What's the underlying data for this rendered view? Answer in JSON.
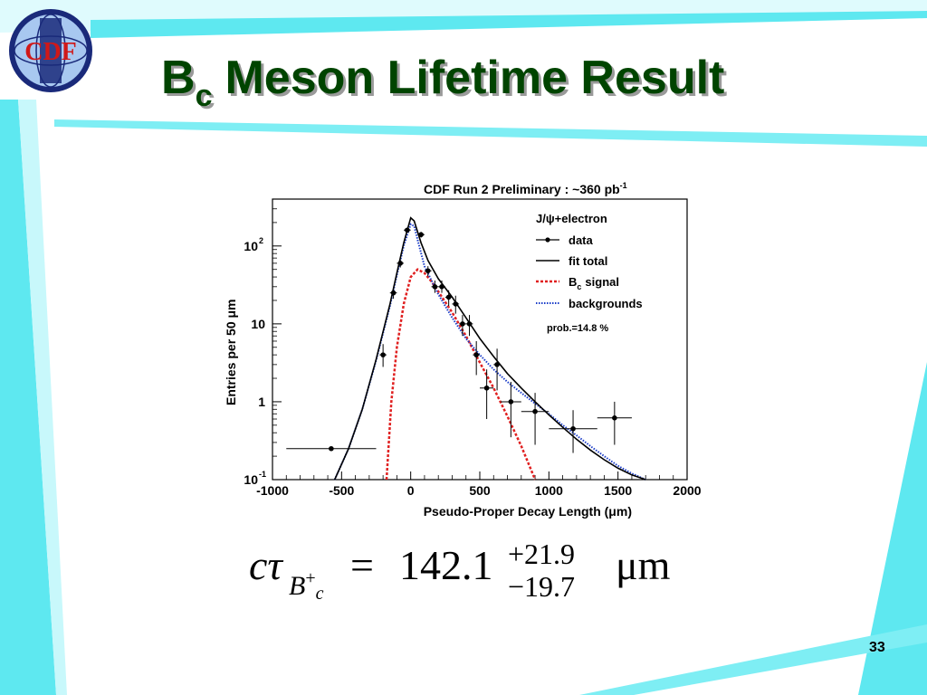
{
  "slide": {
    "title_main": "B",
    "title_sub": "c",
    "title_rest": "Meson Lifetime Result",
    "page_number": "33",
    "logo_text": "CDF"
  },
  "formula": {
    "lhs": "cτ",
    "lhs_sub": "B",
    "lhs_sub_sup": "+",
    "lhs_sub_sub": "c",
    "equals": "=",
    "value": "142.1",
    "err_plus": "+21.9",
    "err_minus": "−19.7",
    "unit": "μm"
  },
  "colors": {
    "title": "#004400",
    "accent_band": "#5ee8f0",
    "signal": "#e02020",
    "background_curve": "#1a3cc8",
    "fit_total": "#000000"
  },
  "chart_data": {
    "type": "scatter",
    "title": "CDF Run 2 Preliminary : ~360 pb",
    "title_sup": "-1",
    "xlabel": "Pseudo-Proper Decay Length (μm)",
    "ylabel": "Entries per 50 μm",
    "xlim": [
      -1000,
      2000
    ],
    "ylim": [
      0.1,
      400
    ],
    "y_scale": "log",
    "x_ticks": [
      "-1000",
      "-500",
      "0",
      "500",
      "1000",
      "1500",
      "2000"
    ],
    "x_tick_values": [
      -1000,
      -500,
      0,
      500,
      1000,
      1500,
      2000
    ],
    "y_ticks": [
      {
        "value": 0.1,
        "base": "10",
        "sup": "-1"
      },
      {
        "value": 1,
        "base": "1",
        "sup": ""
      },
      {
        "value": 10,
        "base": "10",
        "sup": ""
      },
      {
        "value": 100,
        "base": "10",
        "sup": "2"
      }
    ],
    "legend": {
      "header": "J/ψ+electron",
      "entries": [
        "data",
        "fit total",
        "B",
        "backgrounds"
      ],
      "signal_sub": "c",
      "signal_rest": "signal",
      "placement": "top-right"
    },
    "annotation": "prob.=14.8 %",
    "data_points": [
      {
        "x": -575,
        "y": 0.25,
        "xerr": 325,
        "ylo": 0.25,
        "yhi": 0.25
      },
      {
        "x": -200,
        "y": 4,
        "xerr": 25,
        "ylo": 2.8,
        "yhi": 5.5
      },
      {
        "x": -125,
        "y": 25,
        "xerr": 25,
        "ylo": 21,
        "yhi": 29
      },
      {
        "x": -75,
        "y": 60,
        "xerr": 25,
        "ylo": 53,
        "yhi": 67
      },
      {
        "x": -25,
        "y": 160,
        "xerr": 25,
        "ylo": 148,
        "yhi": 172
      },
      {
        "x": 75,
        "y": 140,
        "xerr": 25,
        "ylo": 128,
        "yhi": 152
      },
      {
        "x": 125,
        "y": 48,
        "xerr": 25,
        "ylo": 41,
        "yhi": 55
      },
      {
        "x": 175,
        "y": 30,
        "xerr": 25,
        "ylo": 25,
        "yhi": 36
      },
      {
        "x": 225,
        "y": 30,
        "xerr": 25,
        "ylo": 25,
        "yhi": 36
      },
      {
        "x": 275,
        "y": 22,
        "xerr": 25,
        "ylo": 17,
        "yhi": 27
      },
      {
        "x": 325,
        "y": 18,
        "xerr": 25,
        "ylo": 13.5,
        "yhi": 23
      },
      {
        "x": 375,
        "y": 10,
        "xerr": 25,
        "ylo": 7,
        "yhi": 13
      },
      {
        "x": 425,
        "y": 10,
        "xerr": 25,
        "ylo": 7,
        "yhi": 13
      },
      {
        "x": 475,
        "y": 4,
        "xerr": 25,
        "ylo": 2.2,
        "yhi": 6
      },
      {
        "x": 550,
        "y": 1.5,
        "xerr": 50,
        "ylo": 0.6,
        "yhi": 2.6
      },
      {
        "x": 625,
        "y": 3,
        "xerr": 25,
        "ylo": 1.4,
        "yhi": 4.8
      },
      {
        "x": 725,
        "y": 1,
        "xerr": 75,
        "ylo": 0.35,
        "yhi": 1.8
      },
      {
        "x": 900,
        "y": 0.75,
        "xerr": 100,
        "ylo": 0.28,
        "yhi": 1.3
      },
      {
        "x": 1175,
        "y": 0.45,
        "xerr": 175,
        "ylo": 0.22,
        "yhi": 0.78
      },
      {
        "x": 1475,
        "y": 0.62,
        "xerr": 125,
        "ylo": 0.28,
        "yhi": 1.0
      }
    ],
    "fit_total": [
      [
        -550,
        0.1
      ],
      [
        -450,
        0.25
      ],
      [
        -350,
        0.8
      ],
      [
        -250,
        3.5
      ],
      [
        -150,
        18
      ],
      [
        -100,
        45
      ],
      [
        -50,
        110
      ],
      [
        0,
        230
      ],
      [
        25,
        210
      ],
      [
        75,
        110
      ],
      [
        125,
        65
      ],
      [
        200,
        38
      ],
      [
        300,
        22
      ],
      [
        400,
        12
      ],
      [
        500,
        6.5
      ],
      [
        600,
        3.8
      ],
      [
        700,
        2.3
      ],
      [
        800,
        1.5
      ],
      [
        900,
        1.0
      ],
      [
        1000,
        0.68
      ],
      [
        1100,
        0.47
      ],
      [
        1200,
        0.33
      ],
      [
        1300,
        0.24
      ],
      [
        1400,
        0.18
      ],
      [
        1500,
        0.14
      ],
      [
        1600,
        0.115
      ],
      [
        1700,
        0.1
      ]
    ],
    "backgrounds": [
      [
        -550,
        0.1
      ],
      [
        -450,
        0.25
      ],
      [
        -350,
        0.8
      ],
      [
        -250,
        3.4
      ],
      [
        -150,
        17
      ],
      [
        -100,
        42
      ],
      [
        -50,
        100
      ],
      [
        0,
        190
      ],
      [
        25,
        180
      ],
      [
        50,
        120
      ],
      [
        100,
        55
      ],
      [
        200,
        24
      ],
      [
        300,
        12
      ],
      [
        400,
        6.5
      ],
      [
        500,
        4
      ],
      [
        600,
        2.6
      ],
      [
        700,
        1.8
      ],
      [
        800,
        1.3
      ],
      [
        900,
        0.95
      ],
      [
        1000,
        0.7
      ],
      [
        1100,
        0.5
      ],
      [
        1200,
        0.37
      ],
      [
        1300,
        0.27
      ],
      [
        1400,
        0.2
      ],
      [
        1500,
        0.15
      ],
      [
        1600,
        0.12
      ],
      [
        1700,
        0.1
      ]
    ],
    "signal": [
      [
        -175,
        0.1
      ],
      [
        -140,
        1.0
      ],
      [
        -100,
        5
      ],
      [
        -50,
        18
      ],
      [
        0,
        40
      ],
      [
        50,
        50
      ],
      [
        100,
        45
      ],
      [
        150,
        35
      ],
      [
        200,
        26
      ],
      [
        300,
        14
      ],
      [
        400,
        7
      ],
      [
        500,
        3.2
      ],
      [
        600,
        1.5
      ],
      [
        700,
        0.65
      ],
      [
        800,
        0.27
      ],
      [
        900,
        0.1
      ]
    ]
  }
}
